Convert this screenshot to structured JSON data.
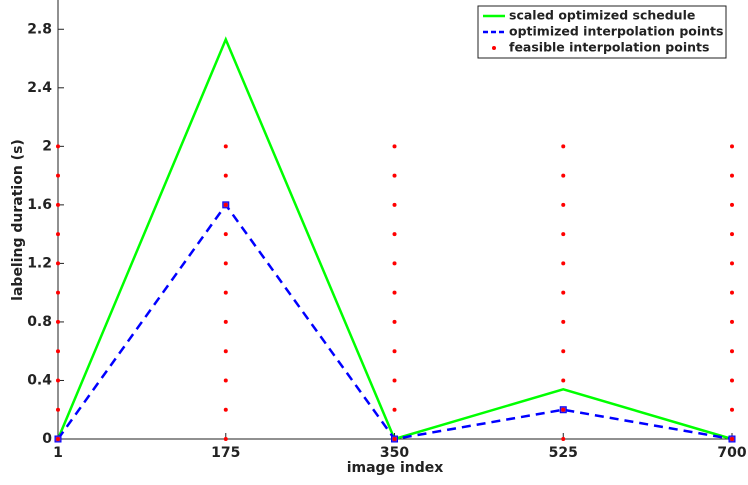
{
  "chart_data": {
    "type": "line",
    "xlabel": "image index",
    "ylabel": "labeling duration (s)",
    "xlim": [
      1,
      700
    ],
    "ylim": [
      0,
      3
    ],
    "xticks": [
      1,
      175,
      350,
      525,
      700
    ],
    "yticks": [
      0,
      0.4,
      0.8,
      1.2,
      1.6,
      2,
      2.4,
      2.8
    ],
    "legend": "upper right",
    "series": [
      {
        "name": "scaled optimized schedule",
        "color": "#00ff00",
        "line": "solid",
        "marker": "none",
        "x": [
          1,
          175,
          350,
          525,
          700
        ],
        "values": [
          0,
          2.73,
          0,
          0.34,
          0
        ]
      },
      {
        "name": "optimized interpolation points",
        "color": "#0000ff",
        "line": "dashed",
        "marker": "square",
        "x": [
          1,
          175,
          350,
          525,
          700
        ],
        "values": [
          0,
          1.6,
          0,
          0.2,
          0
        ]
      },
      {
        "name": "feasible interpolation points",
        "color": "#ff0000",
        "line": "none",
        "marker": "dot",
        "x": [
          1,
          1,
          1,
          1,
          1,
          1,
          1,
          1,
          1,
          1,
          1,
          175,
          175,
          175,
          175,
          175,
          175,
          175,
          175,
          175,
          175,
          175,
          350,
          350,
          350,
          350,
          350,
          350,
          350,
          350,
          350,
          350,
          350,
          525,
          525,
          525,
          525,
          525,
          525,
          525,
          525,
          525,
          525,
          525,
          700,
          700,
          700,
          700,
          700,
          700,
          700,
          700,
          700,
          700,
          700
        ],
        "values": [
          0,
          0.2,
          0.4,
          0.6,
          0.8,
          1,
          1.2,
          1.4,
          1.6,
          1.8,
          2,
          0,
          0.2,
          0.4,
          0.6,
          0.8,
          1,
          1.2,
          1.4,
          1.6,
          1.8,
          2,
          0,
          0.2,
          0.4,
          0.6,
          0.8,
          1,
          1.2,
          1.4,
          1.6,
          1.8,
          2,
          0,
          0.2,
          0.4,
          0.6,
          0.8,
          1,
          1.2,
          1.4,
          1.6,
          1.8,
          2,
          0,
          0.2,
          0.4,
          0.6,
          0.8,
          1,
          1.2,
          1.4,
          1.6,
          1.8,
          2
        ]
      }
    ]
  }
}
